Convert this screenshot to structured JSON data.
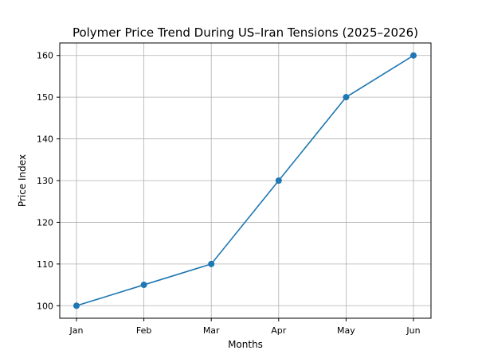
{
  "chart_data": {
    "type": "line",
    "title": "Polymer Price Trend During US–Iran Tensions (2025–2026)",
    "xlabel": "Months",
    "ylabel": "Price Index",
    "categories": [
      "Jan",
      "Feb",
      "Mar",
      "Apr",
      "May",
      "Jun"
    ],
    "values": [
      100,
      105,
      110,
      130,
      150,
      160
    ],
    "ylim": [
      97,
      163
    ],
    "yticks": [
      100,
      110,
      120,
      130,
      140,
      150,
      160
    ],
    "grid": true,
    "marker": "circle",
    "line_color": "#1f77b4",
    "grid_color": "#b0b0b0"
  }
}
